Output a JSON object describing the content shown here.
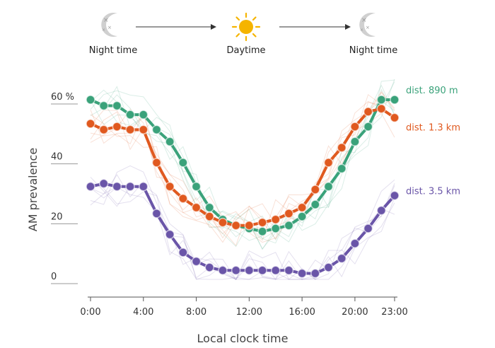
{
  "header": {
    "phases": [
      {
        "label": "Night time",
        "icon": "moon-icon"
      },
      {
        "label": "Daytime",
        "icon": "sun-icon"
      },
      {
        "label": "Night time",
        "icon": "moon-icon"
      }
    ]
  },
  "chart_data": {
    "type": "line",
    "xlabel": "Local clock time",
    "ylabel": "AM prevalence",
    "xlim": [
      0,
      23
    ],
    "ylim": [
      0,
      60
    ],
    "x_ticks": [
      {
        "value": 0,
        "label": "0:00"
      },
      {
        "value": 4,
        "label": "4:00"
      },
      {
        "value": 8,
        "label": "8:00"
      },
      {
        "value": 12,
        "label": "12:00"
      },
      {
        "value": 16,
        "label": "16:00"
      },
      {
        "value": 20,
        "label": "20:00"
      },
      {
        "value": 23,
        "label": "23:00"
      }
    ],
    "y_ticks": [
      {
        "value": 0,
        "label": "0"
      },
      {
        "value": 20,
        "label": "20"
      },
      {
        "value": 40,
        "label": "40"
      },
      {
        "value": 60,
        "label": "60 %"
      }
    ],
    "x": [
      0,
      1,
      2,
      3,
      4,
      5,
      6,
      7,
      8,
      9,
      10,
      11,
      12,
      13,
      14,
      15,
      16,
      17,
      18,
      19,
      20,
      21,
      22,
      23
    ],
    "series": [
      {
        "name": "dist. 890 m",
        "color": "#3aa27a",
        "values": [
          60,
          58,
          58,
          55,
          55,
          50,
          46,
          39,
          31,
          24,
          20,
          18,
          17,
          16,
          17,
          18,
          21,
          25,
          31,
          37,
          46,
          51,
          60,
          60
        ]
      },
      {
        "name": "dist. 1.3 km",
        "color": "#e0591f",
        "values": [
          52,
          50,
          51,
          50,
          50,
          39,
          31,
          27,
          24,
          21,
          19,
          18,
          18,
          19,
          20,
          22,
          24,
          30,
          39,
          44,
          51,
          56,
          57,
          54
        ]
      },
      {
        "name": "dist. 3.5 km",
        "color": "#6a55a8",
        "values": [
          31,
          32,
          31,
          31,
          31,
          22,
          15,
          9,
          6,
          4,
          3,
          3,
          3,
          3,
          3,
          3,
          2,
          2,
          4,
          7,
          12,
          17,
          23,
          28
        ]
      }
    ]
  }
}
